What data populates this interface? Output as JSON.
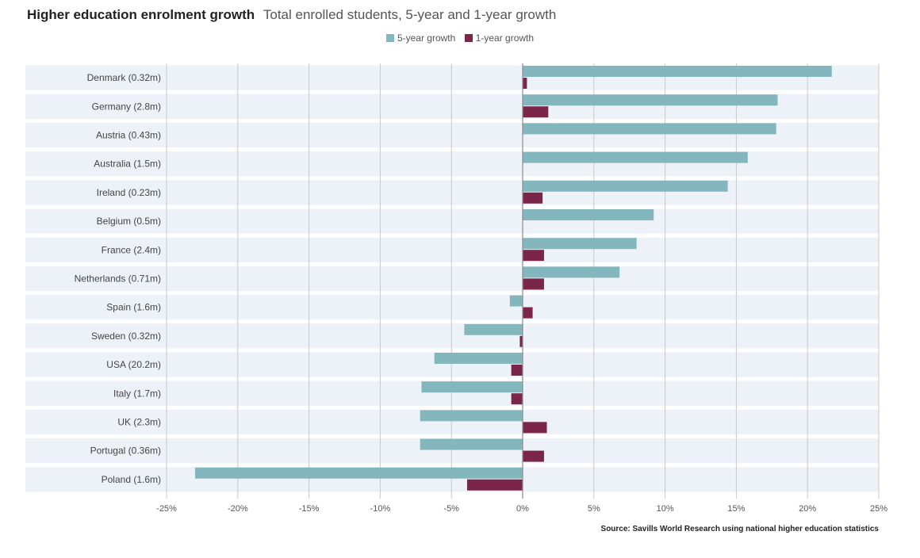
{
  "colors": {
    "five_year": "#84b6bd",
    "one_year": "#7b2548",
    "band": "#edf2f8",
    "grid": "#c9c9c9"
  },
  "chart_data": {
    "type": "bar",
    "orientation": "horizontal",
    "title": "Higher education enrolment growth",
    "subtitle": "Total enrolled students, 5-year and 1-year growth",
    "legend_position": "top-center",
    "categories": [
      "Denmark (0.32m)",
      "Germany (2.8m)",
      "Austria (0.43m)",
      "Australia (1.5m)",
      "Ireland (0.23m)",
      "Belgium (0.5m)",
      "France (2.4m)",
      "Netherlands (0.71m)",
      "Spain (1.6m)",
      "Sweden (0.32m)",
      "USA (20.2m)",
      "Italy (1.7m)",
      "UK (2.3m)",
      "Portugal (0.36m)",
      "Poland (1.6m)"
    ],
    "series": [
      {
        "name": "5-year growth",
        "values": [
          21.7,
          17.9,
          17.8,
          15.8,
          14.4,
          9.2,
          8.0,
          6.8,
          -0.9,
          -4.1,
          -6.2,
          -7.1,
          -7.2,
          -7.2,
          -23.0
        ]
      },
      {
        "name": "1-year growth",
        "values": [
          0.3,
          1.8,
          0.0,
          0.0,
          1.4,
          0.0,
          1.5,
          1.5,
          0.7,
          -0.2,
          -0.8,
          -0.8,
          1.7,
          1.5,
          -3.9
        ]
      }
    ],
    "x_ticks": [
      "-25%",
      "-20%",
      "-15%",
      "-10%",
      "-5%",
      "0%",
      "5%",
      "10%",
      "15%",
      "20%",
      "25%"
    ],
    "xlim": [
      -25,
      25
    ],
    "grid": true
  },
  "source": "Source: Savills World Research using national higher education statistics"
}
